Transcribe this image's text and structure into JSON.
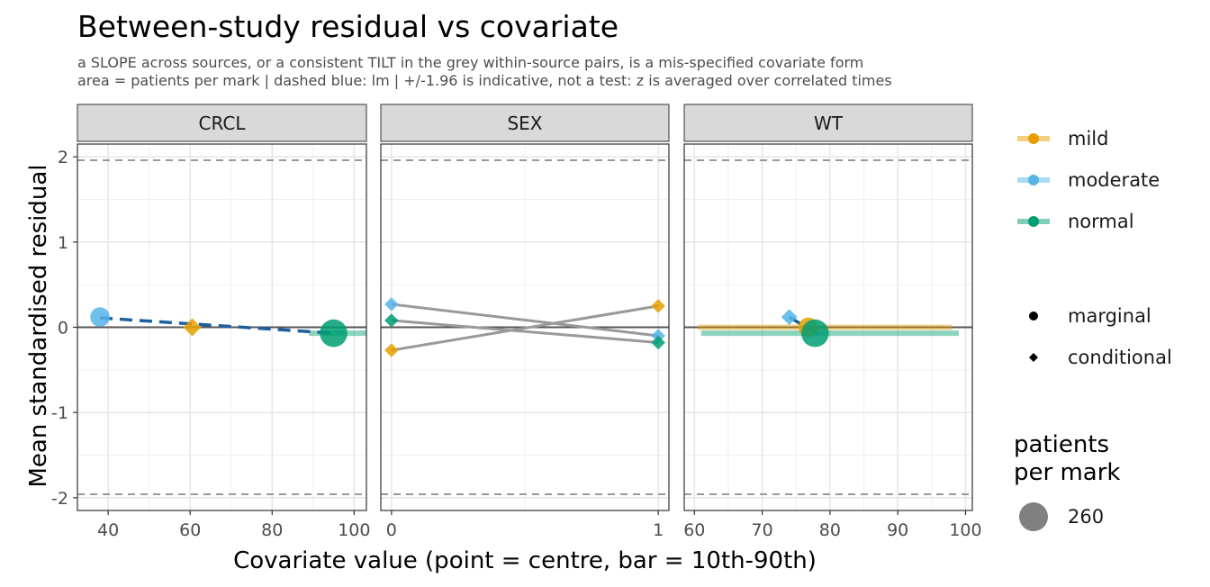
{
  "chart_data": {
    "type": "scatter",
    "title": "Between-study residual vs covariate",
    "subtitle": [
      "a SLOPE across sources, or a consistent TILT in the grey within-source pairs, is a mis-specified covariate form",
      "area = patients per mark  |  dashed blue: lm  | +/-1.96 is indicative, not a test: z is averaged over correlated times"
    ],
    "xlabel": "Covariate value (point = centre, bar = 10th-90th)",
    "ylabel": "Mean standardised residual",
    "ylim": [
      -2.15,
      2.15
    ],
    "y_ticks": [
      2,
      1,
      0,
      -1,
      -2
    ],
    "y_tick_labels": [
      "2",
      "1",
      "0",
      "-1",
      "-2"
    ],
    "reference_lines": {
      "zero": 0,
      "dashed": [
        1.96,
        -1.96
      ]
    },
    "grid": true,
    "legend_position": "right",
    "colors": {
      "mild": "#E69F00",
      "moderate": "#56B4E9",
      "normal": "#009E73",
      "lm_line": "#1F5FA0",
      "pair_line": "#999999"
    },
    "panels": [
      {
        "name": "CRCL",
        "xlim": [
          32.5,
          103
        ],
        "x_ticks": [
          40,
          60,
          80,
          100
        ],
        "lm": {
          "x": [
            38,
            95
          ],
          "y": [
            0.11,
            -0.07
          ]
        },
        "points": [
          {
            "group": "moderate",
            "shape": "marginal",
            "x": 38,
            "y": 0.12,
            "size": 130
          },
          {
            "group": "mild",
            "shape": "conditional",
            "x": 60.5,
            "y": 0.0,
            "size": 100
          },
          {
            "group": "normal",
            "shape": "marginal",
            "x": 95,
            "y": -0.07,
            "size": 260
          }
        ],
        "bars": [
          {
            "group": "normal",
            "x": [
              89,
              103
            ],
            "y": -0.07
          }
        ]
      },
      {
        "name": "SEX",
        "xlim": [
          -0.04,
          1.04
        ],
        "x_ticks": [
          0,
          1
        ],
        "pairs": [
          {
            "group": "moderate",
            "y": [
              0.27,
              -0.1
            ]
          },
          {
            "group": "normal",
            "y": [
              0.08,
              -0.18
            ]
          },
          {
            "group": "mild",
            "y": [
              -0.27,
              0.25
            ]
          }
        ],
        "points": [
          {
            "group": "moderate",
            "shape": "conditional",
            "x": 0,
            "y": 0.27,
            "size": 60
          },
          {
            "group": "normal",
            "shape": "conditional",
            "x": 0,
            "y": 0.08,
            "size": 60
          },
          {
            "group": "mild",
            "shape": "conditional",
            "x": 0,
            "y": -0.27,
            "size": 60
          },
          {
            "group": "mild",
            "shape": "conditional",
            "x": 1,
            "y": 0.25,
            "size": 60
          },
          {
            "group": "moderate",
            "shape": "conditional",
            "x": 1,
            "y": -0.1,
            "size": 60
          },
          {
            "group": "normal",
            "shape": "conditional",
            "x": 1,
            "y": -0.18,
            "size": 60
          }
        ]
      },
      {
        "name": "WT",
        "xlim": [
          58.5,
          101
        ],
        "x_ticks": [
          60,
          70,
          80,
          90,
          100
        ],
        "lm": {
          "x": [
            74,
            78
          ],
          "y": [
            0.12,
            -0.07
          ]
        },
        "points": [
          {
            "group": "moderate",
            "shape": "conditional",
            "x": 74,
            "y": 0.12,
            "size": 80
          },
          {
            "group": "mild",
            "shape": "marginal",
            "x": 76.8,
            "y": 0.0,
            "size": 130
          },
          {
            "group": "normal",
            "shape": "marginal",
            "x": 77.8,
            "y": -0.07,
            "size": 260
          }
        ],
        "bars": [
          {
            "group": "mild",
            "x": [
              60.5,
              98
            ],
            "y": 0.0
          },
          {
            "group": "normal",
            "x": [
              61,
              99
            ],
            "y": -0.07
          }
        ]
      }
    ],
    "legend": {
      "color_items": [
        "mild",
        "moderate",
        "normal"
      ],
      "shape_items": [
        "marginal",
        "conditional"
      ],
      "size_title": [
        "patients",
        "per mark"
      ],
      "size_value": "260"
    }
  }
}
